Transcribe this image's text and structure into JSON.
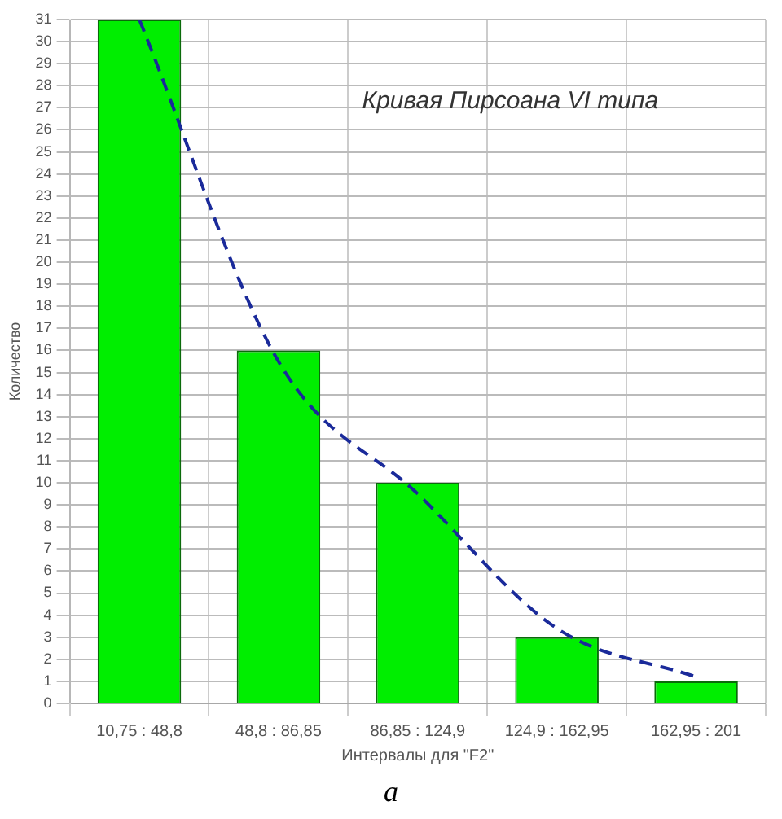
{
  "chart_data": {
    "type": "bar",
    "xlabel": "Интервалы для \"F2\"",
    "ylabel": "Количество",
    "categories": [
      "10,75 : 48,8",
      "48,8 : 86,85",
      "86,85 : 124,9",
      "124,9 : 162,95",
      "162,95 : 201"
    ],
    "series": [
      {
        "color": "#00ee00",
        "values": [
          31,
          16,
          10,
          3,
          1
        ]
      },
      {
        "type": "line",
        "color": "#1a2a9a",
        "line_style": "dashed",
        "marker": "none",
        "values": [
          31,
          15.5,
          9.5,
          3.4,
          1.2
        ]
      }
    ],
    "ylim": [
      0,
      31
    ],
    "yticks": [
      0,
      1,
      2,
      3,
      4,
      5,
      6,
      7,
      8,
      9,
      10,
      11,
      12,
      13,
      14,
      15,
      16,
      17,
      18,
      19,
      20,
      21,
      22,
      23,
      24,
      25,
      26,
      27,
      28,
      29,
      30,
      31
    ],
    "grid": true,
    "legend": false,
    "annotations": [
      "Кривая Пирсоана VI типа",
      "a"
    ]
  }
}
